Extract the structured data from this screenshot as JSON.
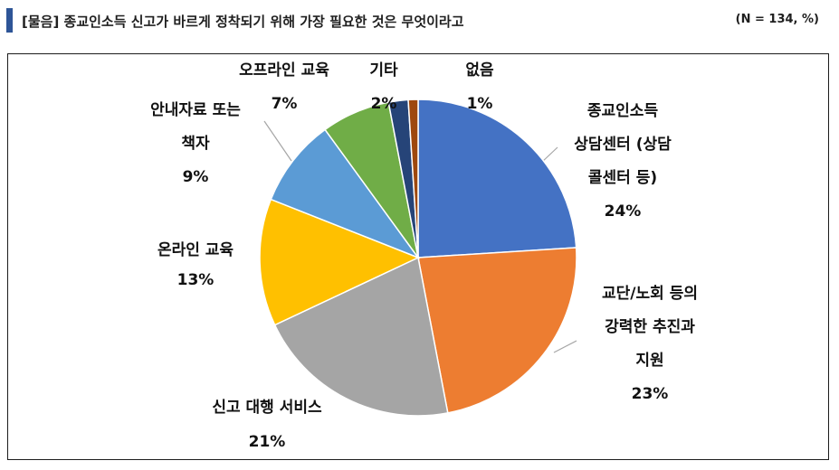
{
  "header": {
    "title": "[물음] 종교인소득 신고가 바르게 정착되기 위해 가장 필요한 것은 무엇이라고",
    "note": "(N = 134, %)"
  },
  "chart_data": {
    "type": "pie",
    "title": "",
    "start_angle_deg": 0,
    "direction": "clockwise",
    "slices": [
      {
        "label": "종교인소득 상담센터 (상담 콜센터 등)",
        "label_lines": [
          "종교인소득",
          "상담센터 (상담",
          "콜센터 등)"
        ],
        "value": 24,
        "value_label": "24%",
        "color": "#4472c4"
      },
      {
        "label": "교단/노회 등의 강력한 추진과 지원",
        "label_lines": [
          "교단/노회 등의",
          "강력한 추진과",
          "지원"
        ],
        "value": 23,
        "value_label": "23%",
        "color": "#ed7d31"
      },
      {
        "label": "신고 대행 서비스",
        "label_lines": [
          "신고 대행 서비스"
        ],
        "value": 21,
        "value_label": "21%",
        "color": "#a5a5a5"
      },
      {
        "label": "온라인 교육",
        "label_lines": [
          "온라인 교육"
        ],
        "value": 13,
        "value_label": "13%",
        "color": "#ffc000"
      },
      {
        "label": "안내자료 또는 책자",
        "label_lines": [
          "안내자료 또는",
          "책자"
        ],
        "value": 9,
        "value_label": "9%",
        "color": "#5b9bd5"
      },
      {
        "label": "오프라인 교육",
        "label_lines": [
          "오프라인 교육"
        ],
        "value": 7,
        "value_label": "7%",
        "color": "#70ad47"
      },
      {
        "label": "기타",
        "label_lines": [
          "기타"
        ],
        "value": 2,
        "value_label": "2%",
        "color": "#264478"
      },
      {
        "label": "없음",
        "label_lines": [
          "없음"
        ],
        "value": 1,
        "value_label": "1%",
        "color": "#9e480e"
      }
    ]
  }
}
